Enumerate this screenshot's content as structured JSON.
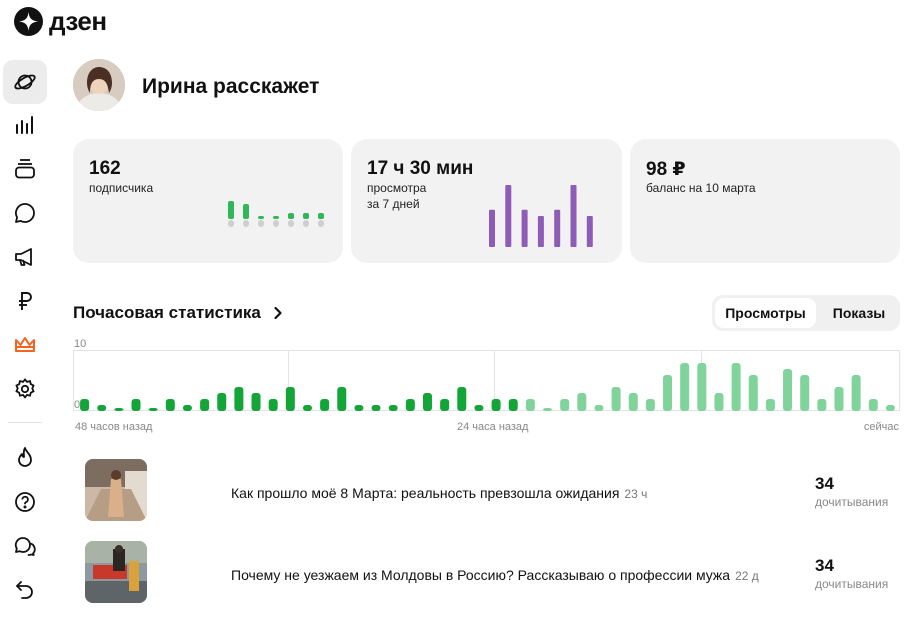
{
  "brand": {
    "name": "дзен"
  },
  "sidebar": {
    "items": [
      {
        "icon": "planet-icon",
        "active": true
      },
      {
        "icon": "bar-chart-icon"
      },
      {
        "icon": "stack-icon"
      },
      {
        "icon": "comment-icon"
      },
      {
        "icon": "megaphone-icon"
      },
      {
        "icon": "ruble-icon"
      },
      {
        "icon": "crown-icon"
      },
      {
        "icon": "gear-icon"
      }
    ],
    "bottom_items": [
      {
        "icon": "fire-icon"
      },
      {
        "icon": "help-icon"
      },
      {
        "icon": "chat-bubbles-icon"
      },
      {
        "icon": "back-arrow-icon"
      }
    ]
  },
  "channel": {
    "name": "Ирина расскажет"
  },
  "cards": {
    "subscribers": {
      "value": "162",
      "label": "подписчика",
      "bars": [
        6,
        5,
        1,
        1,
        2,
        2,
        2
      ]
    },
    "views": {
      "value": "17 ч 30 мин",
      "label": "просмотра",
      "sublabel": "за 7 дней",
      "bars": [
        6,
        10,
        6,
        5,
        6,
        10,
        5
      ]
    },
    "balance": {
      "value": "98 ₽",
      "label": "баланс на 10 марта"
    }
  },
  "hourly": {
    "title": "Почасовая статистика",
    "tabs": {
      "active": "Просмотры",
      "inactive": "Показы"
    },
    "x_labels": {
      "left": "48 часов назад",
      "middle": "24 часа назад",
      "right": "сейчас"
    }
  },
  "chart_data": {
    "type": "bar",
    "title": "Почасовая статистика",
    "ylim": [
      0,
      10
    ],
    "y_ticks": [
      "10",
      "0"
    ],
    "grid": true,
    "values": [
      2,
      1,
      0.5,
      2,
      0.5,
      2,
      1,
      2,
      3,
      4,
      3,
      2,
      4,
      1,
      2,
      4,
      1,
      1,
      1,
      2,
      3,
      2,
      4,
      1,
      2,
      2,
      2,
      0.5,
      2,
      3,
      1,
      4,
      3,
      2,
      6,
      8,
      8,
      3,
      8,
      6,
      2,
      7,
      6,
      2,
      4,
      6,
      2,
      1
    ],
    "split_index": 26,
    "colors": {
      "older": "#13a538",
      "recent": "#7fd39b"
    }
  },
  "posts": [
    {
      "title": "Как прошло моё 8 Марта: реальность превзошла ожидания",
      "age": "23 ч",
      "value": "34",
      "metric": "дочитывания"
    },
    {
      "title": "Почему не уезжаем из Молдовы в Россию? Рассказываю о профессии мужа",
      "age": "22 д",
      "value": "34",
      "metric": "дочитывания"
    }
  ]
}
